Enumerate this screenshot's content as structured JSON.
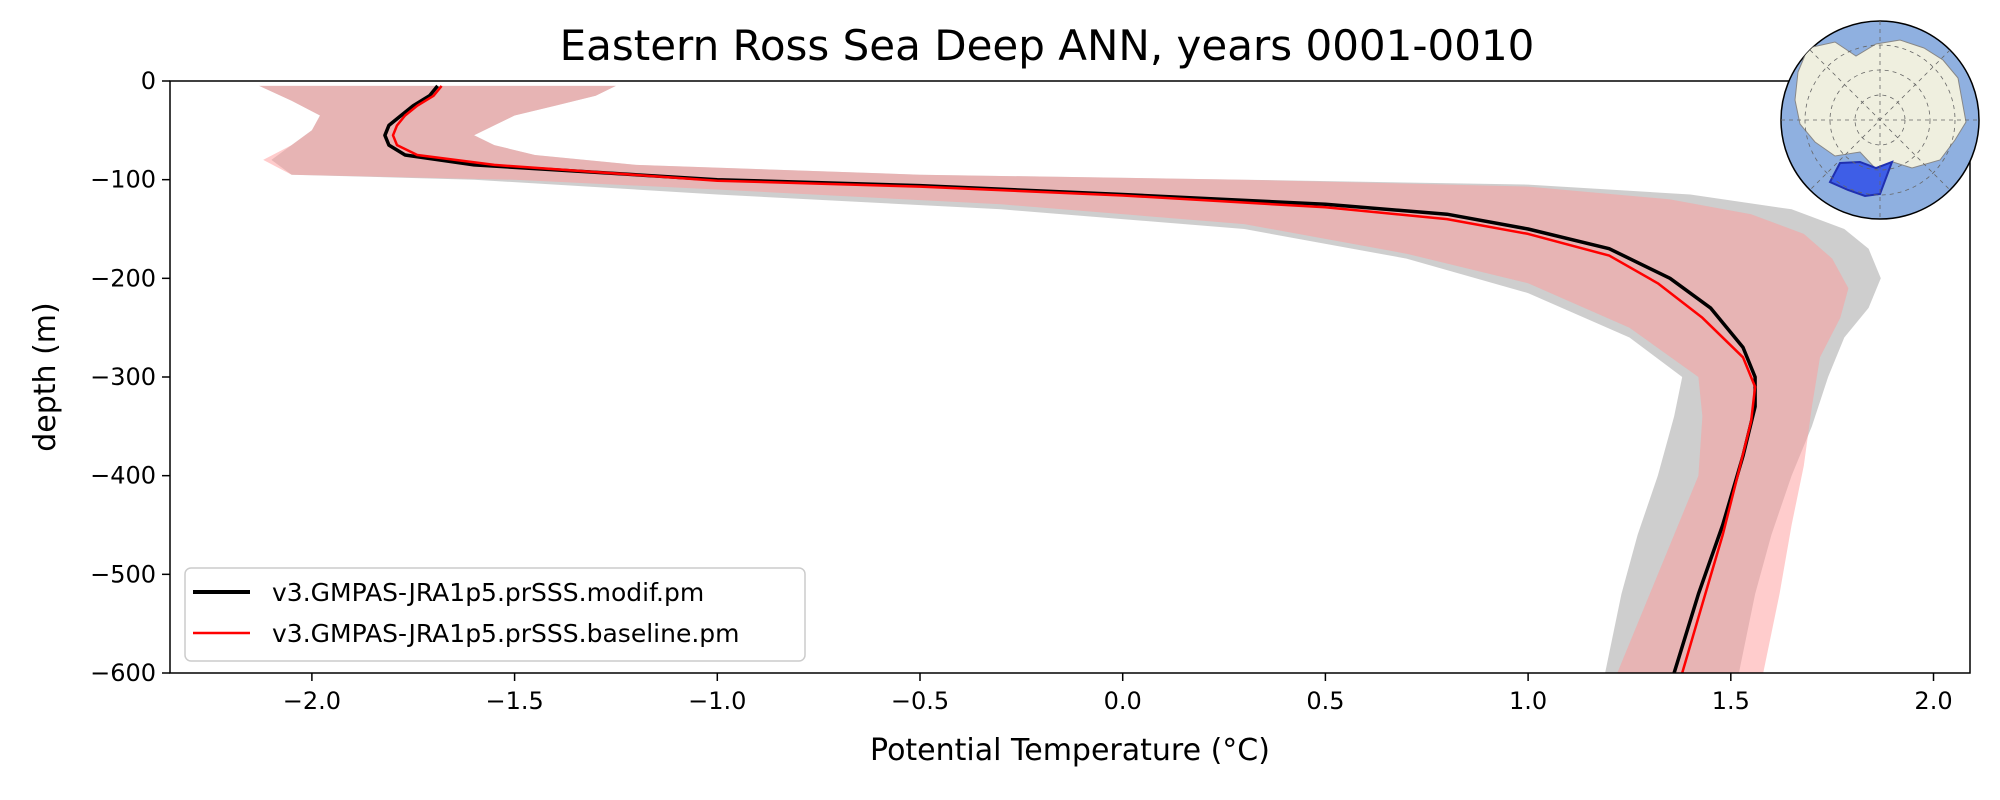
{
  "chart_data": {
    "type": "line",
    "title": "Eastern Ross Sea Deep ANN, years 0001-0010",
    "xlabel": "Potential Temperature (°C)",
    "ylabel": "depth (m)",
    "xlim": [
      -2.35,
      2.09
    ],
    "ylim": [
      -600,
      0
    ],
    "x_ticks": [
      -2.0,
      -1.5,
      -1.0,
      -0.5,
      0.0,
      0.5,
      1.0,
      1.5,
      2.0
    ],
    "x_tick_labels": [
      "−2.0",
      "−1.5",
      "−1.0",
      "−0.5",
      "0.0",
      "0.5",
      "1.0",
      "1.5",
      "2.0"
    ],
    "y_ticks": [
      0,
      -100,
      -200,
      -300,
      -400,
      -500,
      -600
    ],
    "y_tick_labels": [
      "0",
      "−100",
      "−200",
      "−300",
      "−400",
      "−500",
      "−600"
    ],
    "grid": false,
    "legend_position": "lower-left",
    "series": [
      {
        "name": "v3.GMPAS-JRA1p5.prSSS.modif.pm",
        "color": "#000000",
        "mean": [
          [
            -1.69,
            -5
          ],
          [
            -1.71,
            -15
          ],
          [
            -1.75,
            -25
          ],
          [
            -1.78,
            -35
          ],
          [
            -1.81,
            -45
          ],
          [
            -1.82,
            -55
          ],
          [
            -1.81,
            -65
          ],
          [
            -1.77,
            -75
          ],
          [
            -1.6,
            -85
          ],
          [
            -1.0,
            -100
          ],
          [
            -0.5,
            -106
          ],
          [
            0.0,
            -115
          ],
          [
            0.5,
            -125
          ],
          [
            0.8,
            -135
          ],
          [
            1.0,
            -150
          ],
          [
            1.2,
            -170
          ],
          [
            1.35,
            -200
          ],
          [
            1.45,
            -230
          ],
          [
            1.53,
            -270
          ],
          [
            1.56,
            -300
          ],
          [
            1.56,
            -330
          ],
          [
            1.53,
            -380
          ],
          [
            1.48,
            -450
          ],
          [
            1.42,
            -520
          ],
          [
            1.36,
            -600
          ]
        ],
        "band_upper": [
          [
            -1.25,
            -5
          ],
          [
            -1.3,
            -15
          ],
          [
            -1.4,
            -25
          ],
          [
            -1.5,
            -35
          ],
          [
            -1.55,
            -45
          ],
          [
            -1.6,
            -55
          ],
          [
            -1.55,
            -65
          ],
          [
            -1.45,
            -75
          ],
          [
            -1.2,
            -85
          ],
          [
            -0.5,
            -95
          ],
          [
            0.3,
            -100
          ],
          [
            1.0,
            -105
          ],
          [
            1.4,
            -115
          ],
          [
            1.65,
            -130
          ],
          [
            1.78,
            -150
          ],
          [
            1.84,
            -170
          ],
          [
            1.87,
            -200
          ],
          [
            1.84,
            -230
          ],
          [
            1.78,
            -260
          ],
          [
            1.74,
            -300
          ],
          [
            1.7,
            -350
          ],
          [
            1.65,
            -400
          ],
          [
            1.6,
            -460
          ],
          [
            1.56,
            -520
          ],
          [
            1.52,
            -600
          ]
        ],
        "band_lower": [
          [
            -2.13,
            -5
          ],
          [
            -2.05,
            -20
          ],
          [
            -1.98,
            -35
          ],
          [
            -2.0,
            -50
          ],
          [
            -2.05,
            -65
          ],
          [
            -2.1,
            -80
          ],
          [
            -2.05,
            -95
          ],
          [
            -1.6,
            -100
          ],
          [
            -1.0,
            -115
          ],
          [
            -0.3,
            -130
          ],
          [
            0.3,
            -150
          ],
          [
            0.7,
            -180
          ],
          [
            1.0,
            -215
          ],
          [
            1.25,
            -260
          ],
          [
            1.38,
            -300
          ],
          [
            1.36,
            -340
          ],
          [
            1.32,
            -400
          ],
          [
            1.27,
            -460
          ],
          [
            1.23,
            -520
          ],
          [
            1.19,
            -600
          ]
        ]
      },
      {
        "name": "v3.GMPAS-JRA1p5.prSSS.baseline.pm",
        "color": "#ff0000",
        "mean": [
          [
            -1.68,
            -5
          ],
          [
            -1.7,
            -15
          ],
          [
            -1.74,
            -25
          ],
          [
            -1.77,
            -35
          ],
          [
            -1.79,
            -45
          ],
          [
            -1.8,
            -55
          ],
          [
            -1.79,
            -65
          ],
          [
            -1.74,
            -75
          ],
          [
            -1.55,
            -85
          ],
          [
            -1.0,
            -101
          ],
          [
            -0.5,
            -107
          ],
          [
            0.0,
            -116
          ],
          [
            0.5,
            -128
          ],
          [
            0.8,
            -140
          ],
          [
            1.0,
            -155
          ],
          [
            1.2,
            -177
          ],
          [
            1.32,
            -205
          ],
          [
            1.43,
            -240
          ],
          [
            1.53,
            -280
          ],
          [
            1.56,
            -310
          ],
          [
            1.55,
            -345
          ],
          [
            1.52,
            -395
          ],
          [
            1.48,
            -460
          ],
          [
            1.43,
            -530
          ],
          [
            1.38,
            -600
          ]
        ],
        "band_upper": [
          [
            -1.25,
            -5
          ],
          [
            -1.3,
            -15
          ],
          [
            -1.4,
            -25
          ],
          [
            -1.5,
            -35
          ],
          [
            -1.55,
            -45
          ],
          [
            -1.6,
            -55
          ],
          [
            -1.55,
            -65
          ],
          [
            -1.45,
            -75
          ],
          [
            -1.2,
            -85
          ],
          [
            -0.5,
            -95
          ],
          [
            0.3,
            -100
          ],
          [
            1.0,
            -107
          ],
          [
            1.35,
            -120
          ],
          [
            1.55,
            -135
          ],
          [
            1.68,
            -155
          ],
          [
            1.75,
            -180
          ],
          [
            1.79,
            -210
          ],
          [
            1.77,
            -240
          ],
          [
            1.72,
            -280
          ],
          [
            1.7,
            -330
          ],
          [
            1.68,
            -390
          ],
          [
            1.65,
            -450
          ],
          [
            1.62,
            -520
          ],
          [
            1.58,
            -600
          ]
        ],
        "band_lower": [
          [
            -2.13,
            -5
          ],
          [
            -2.05,
            -20
          ],
          [
            -1.98,
            -35
          ],
          [
            -2.0,
            -50
          ],
          [
            -2.05,
            -65
          ],
          [
            -2.12,
            -80
          ],
          [
            -2.05,
            -95
          ],
          [
            -1.5,
            -100
          ],
          [
            -1.0,
            -110
          ],
          [
            -0.3,
            -125
          ],
          [
            0.3,
            -145
          ],
          [
            0.7,
            -175
          ],
          [
            1.0,
            -205
          ],
          [
            1.25,
            -250
          ],
          [
            1.42,
            -300
          ],
          [
            1.43,
            -340
          ],
          [
            1.42,
            -400
          ],
          [
            1.36,
            -460
          ],
          [
            1.3,
            -520
          ],
          [
            1.22,
            -600
          ]
        ]
      }
    ]
  },
  "inset_map": {
    "ocean_color": "#8fb0e0",
    "land_color": "#efefdf",
    "region_color": "#3050e8"
  }
}
